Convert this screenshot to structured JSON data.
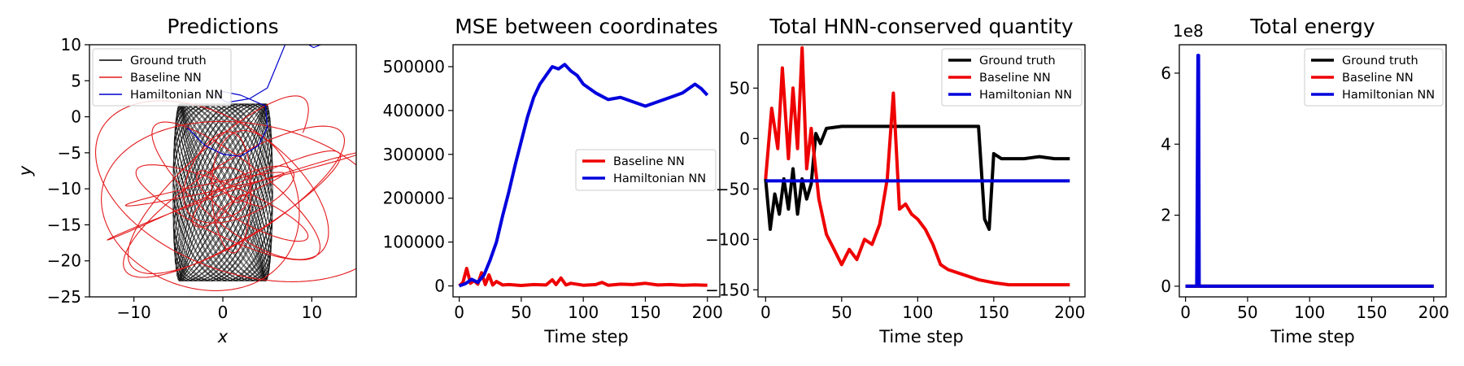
{
  "chart_data": [
    {
      "type": "line",
      "title": "Predictions",
      "xlabel": "x",
      "ylabel": "y",
      "xlim": [
        -15,
        15
      ],
      "ylim": [
        -25,
        10
      ],
      "xticks": [
        -10,
        0,
        10
      ],
      "xtick_labels": [
        "−10",
        "0",
        "10"
      ],
      "yticks": [
        10,
        5,
        0,
        -5,
        -10,
        -15,
        -20,
        -25
      ],
      "ytick_labels": [
        "10",
        "5",
        "0",
        "−5",
        "−10",
        "−15",
        "−20",
        "−25"
      ],
      "legend_position": "top-left",
      "series": [
        {
          "name": "Ground truth",
          "color": "#000000",
          "description": "dense black precessing orbits, x approx -6..6, y approx -23..2"
        },
        {
          "name": "Baseline NN",
          "color": "#e31a1c",
          "description": "tangled red loops spreading across x -15..15, y -25..4"
        },
        {
          "name": "Hamiltonian NN",
          "color": "#0000cc",
          "description": "blue curve starting near x 5, y 1, sweeping up to x 7, y 10"
        }
      ]
    },
    {
      "type": "line",
      "title": "MSE between coordinates",
      "xlabel": "Time step",
      "ylabel": "",
      "xlim": [
        -5,
        210
      ],
      "ylim": [
        -25000,
        550000
      ],
      "xticks": [
        0,
        50,
        100,
        150,
        200
      ],
      "xtick_labels": [
        "0",
        "50",
        "100",
        "150",
        "200"
      ],
      "yticks": [
        0,
        100000,
        200000,
        300000,
        400000,
        500000
      ],
      "ytick_labels": [
        "0",
        "100000",
        "200000",
        "300000",
        "400000",
        "500000"
      ],
      "legend_position": "center-right",
      "series": [
        {
          "name": "Baseline NN",
          "color": "#ee0000",
          "x": [
            0,
            3,
            6,
            9,
            12,
            15,
            18,
            21,
            24,
            27,
            30,
            35,
            40,
            50,
            60,
            70,
            75,
            78,
            82,
            86,
            90,
            100,
            110,
            115,
            120,
            130,
            140,
            150,
            160,
            170,
            180,
            190,
            200
          ],
          "y": [
            0,
            8000,
            40000,
            6000,
            12000,
            4000,
            30000,
            3000,
            25000,
            2000,
            10000,
            2000,
            3000,
            1000,
            3000,
            2000,
            14000,
            3000,
            18000,
            2000,
            6000,
            1500,
            3000,
            8000,
            1500,
            4000,
            3000,
            6000,
            2000,
            3000,
            1500,
            2500,
            1500
          ]
        },
        {
          "name": "Hamiltonian NN",
          "color": "#0000dd",
          "x": [
            0,
            5,
            10,
            15,
            20,
            25,
            30,
            35,
            40,
            45,
            50,
            55,
            60,
            65,
            70,
            75,
            80,
            85,
            90,
            95,
            100,
            110,
            120,
            130,
            140,
            150,
            160,
            170,
            180,
            190,
            195,
            200
          ],
          "y": [
            0,
            5000,
            15000,
            8000,
            25000,
            60000,
            100000,
            160000,
            215000,
            275000,
            330000,
            385000,
            430000,
            460000,
            480000,
            500000,
            495000,
            505000,
            490000,
            480000,
            460000,
            440000,
            425000,
            430000,
            420000,
            410000,
            420000,
            430000,
            440000,
            460000,
            450000,
            435000
          ]
        }
      ]
    },
    {
      "type": "line",
      "title": "Total HNN-conserved quantity",
      "xlabel": "Time step",
      "ylabel": "",
      "xlim": [
        -5,
        210
      ],
      "ylim": [
        -157,
        93
      ],
      "xticks": [
        0,
        50,
        100,
        150,
        200
      ],
      "xtick_labels": [
        "0",
        "50",
        "100",
        "150",
        "200"
      ],
      "yticks": [
        50,
        0,
        -50,
        -100,
        -150
      ],
      "ytick_labels": [
        "50",
        "0",
        "−50",
        "−100",
        "−150"
      ],
      "legend_position": "top-right",
      "series": [
        {
          "name": "Ground truth",
          "color": "#000000",
          "x": [
            0,
            3,
            6,
            9,
            12,
            15,
            18,
            21,
            24,
            27,
            30,
            33,
            36,
            40,
            50,
            60,
            70,
            80,
            90,
            100,
            110,
            120,
            130,
            140,
            144,
            147,
            150,
            155,
            160,
            170,
            180,
            190,
            200
          ],
          "y": [
            -40,
            -90,
            -55,
            -75,
            -40,
            -70,
            -30,
            -75,
            -40,
            -60,
            -45,
            5,
            -5,
            10,
            12,
            12,
            12,
            12,
            12,
            12,
            12,
            12,
            12,
            12,
            -80,
            -90,
            -15,
            -20,
            -20,
            -20,
            -18,
            -20,
            -20
          ]
        },
        {
          "name": "Baseline NN",
          "color": "#ee0000",
          "x": [
            0,
            4,
            8,
            11,
            15,
            18,
            21,
            24,
            27,
            30,
            35,
            40,
            45,
            50,
            55,
            60,
            65,
            70,
            75,
            80,
            84,
            88,
            92,
            96,
            100,
            105,
            110,
            115,
            120,
            130,
            140,
            150,
            160,
            180,
            200
          ],
          "y": [
            -40,
            30,
            -10,
            70,
            -20,
            50,
            -10,
            90,
            -30,
            10,
            -60,
            -95,
            -110,
            -125,
            -110,
            -120,
            -100,
            -105,
            -85,
            -40,
            45,
            -70,
            -65,
            -75,
            -80,
            -90,
            -105,
            -125,
            -130,
            -135,
            -140,
            -143,
            -145,
            -145,
            -145
          ]
        },
        {
          "name": "Hamiltonian NN",
          "color": "#0000dd",
          "x": [
            0,
            200
          ],
          "y": [
            -42,
            -42
          ]
        }
      ]
    },
    {
      "type": "line",
      "title": "Total energy",
      "xlabel": "Time step",
      "ylabel": "",
      "offset_label": "1e8",
      "xlim": [
        -5,
        210
      ],
      "ylim": [
        -0.3,
        6.8
      ],
      "xticks": [
        0,
        50,
        100,
        150,
        200
      ],
      "xtick_labels": [
        "0",
        "50",
        "100",
        "150",
        "200"
      ],
      "yticks": [
        0,
        2,
        4,
        6
      ],
      "ytick_labels": [
        "0",
        "2",
        "4",
        "6"
      ],
      "legend_position": "top-right",
      "series": [
        {
          "name": "Ground truth",
          "color": "#000000",
          "x": [
            0,
            200
          ],
          "y": [
            0,
            0
          ]
        },
        {
          "name": "Baseline NN",
          "color": "#ee0000",
          "x": [
            0,
            200
          ],
          "y": [
            0,
            0
          ]
        },
        {
          "name": "Hamiltonian NN",
          "color": "#0000dd",
          "x": [
            0,
            9,
            10,
            10.5,
            11,
            200
          ],
          "y": [
            0,
            0,
            6.5,
            6.5,
            0,
            0
          ]
        }
      ]
    }
  ]
}
